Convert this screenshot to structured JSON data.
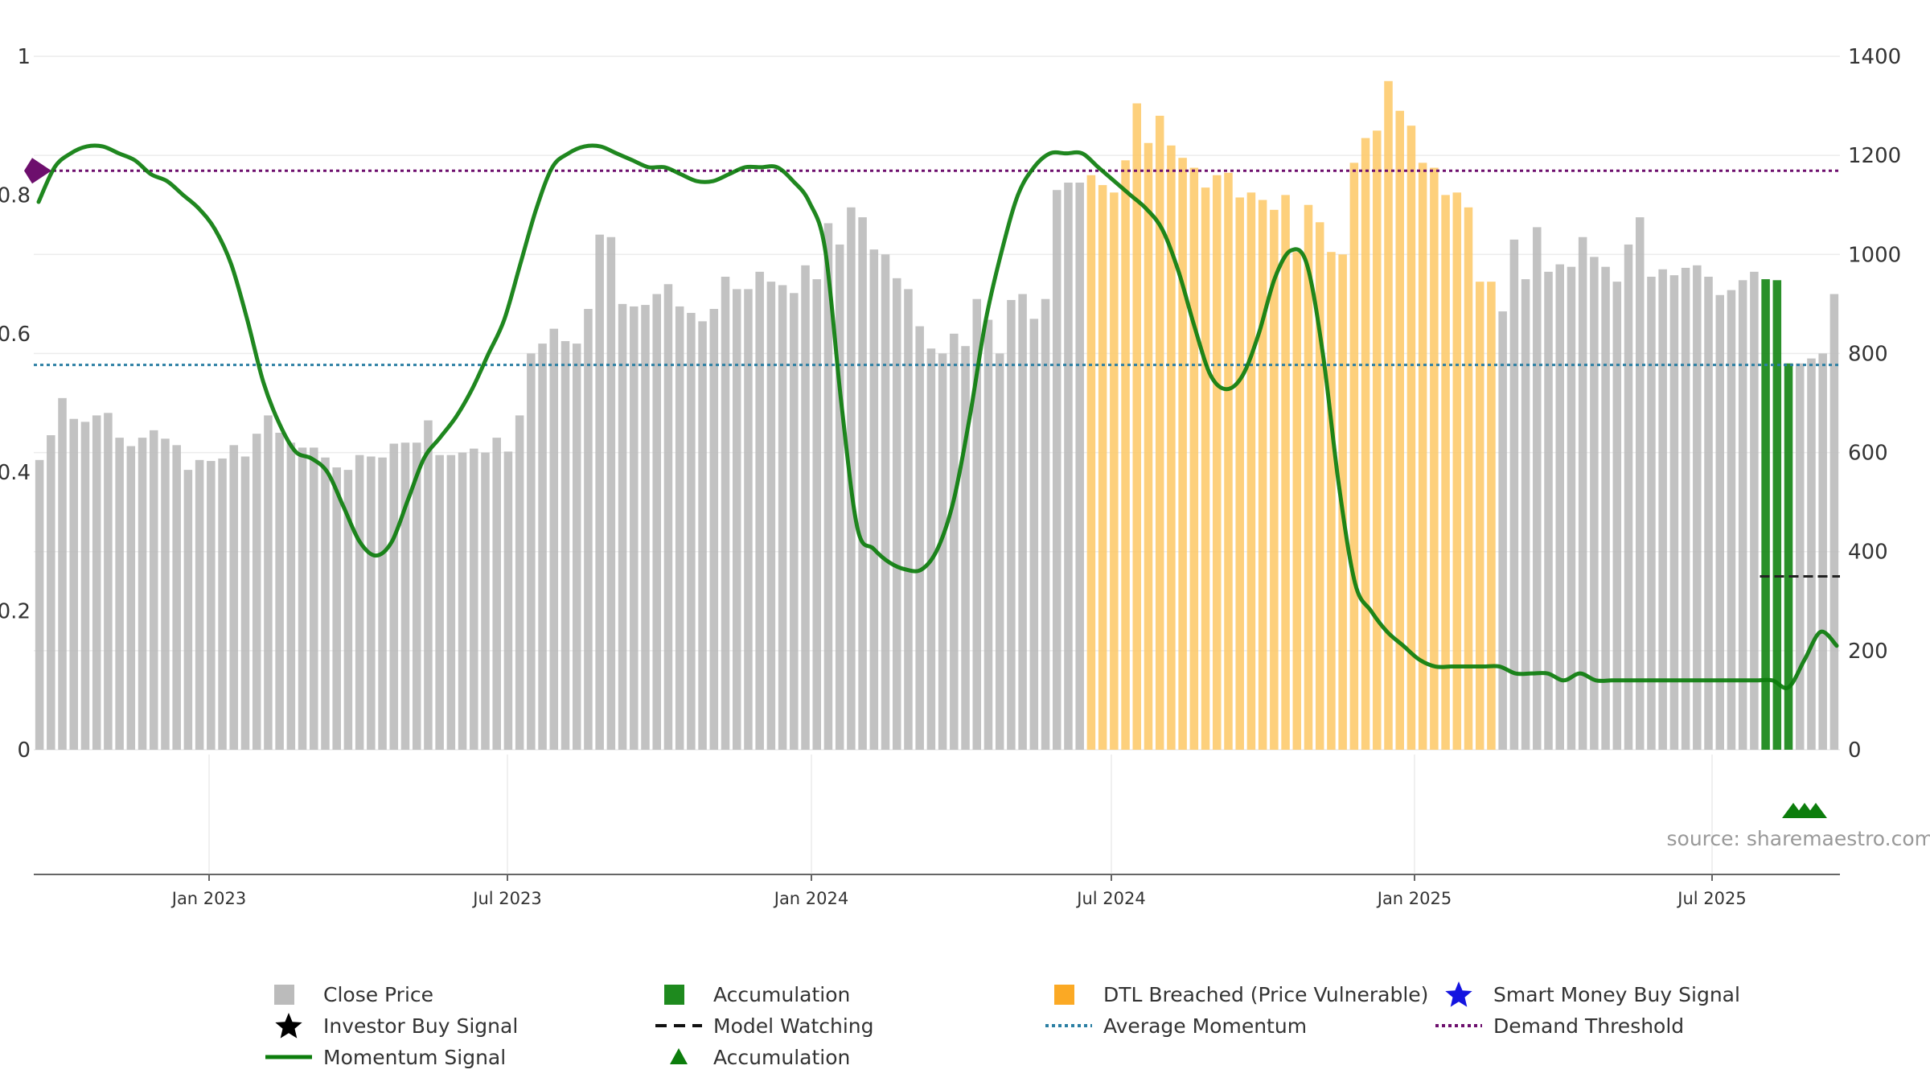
{
  "chart_data": {
    "type": "bar",
    "source_label": "source: sharemaestro.com",
    "x_tick_labels": [
      "Jan 2023",
      "Jul 2023",
      "Jan 2024",
      "Jul 2024",
      "Jan 2025",
      "Jul 2025"
    ],
    "left_axis": {
      "ticks": [
        "0",
        "0.2",
        "0.4",
        "0.6",
        "0.8",
        "1"
      ],
      "range": [
        0,
        1
      ]
    },
    "right_axis": {
      "ticks": [
        "0",
        "200",
        "400",
        "600",
        "800",
        "1000",
        "1200",
        "1400"
      ],
      "range": [
        0,
        1400
      ]
    },
    "series": [
      {
        "name": "Close Price",
        "color": "#bbbbbb",
        "dtl_color": "#fdcb6e",
        "accum_color": "#1e8a1e",
        "values": [
          585,
          635,
          710,
          668,
          662,
          675,
          680,
          630,
          613,
          630,
          645,
          628,
          615,
          565,
          585,
          583,
          588,
          615,
          592,
          638,
          675,
          640,
          620,
          610,
          610,
          590,
          570,
          565,
          595,
          592,
          590,
          618,
          620,
          620,
          665,
          595,
          595,
          600,
          608,
          600,
          630,
          602,
          675,
          800,
          820,
          850,
          825,
          820,
          890,
          1040,
          1035,
          900,
          895,
          898,
          920,
          940,
          895,
          882,
          865,
          890,
          955,
          930,
          930,
          965,
          945,
          938,
          922,
          978,
          950,
          1063,
          1020,
          1095,
          1075,
          1010,
          1000,
          952,
          930,
          855,
          810,
          800,
          840,
          815,
          910,
          868,
          800,
          908,
          920,
          870,
          910,
          1130,
          1145,
          1145,
          1160,
          1140,
          1125,
          1190,
          1305,
          1225,
          1280,
          1220,
          1195,
          1175,
          1135,
          1160,
          1165,
          1115,
          1125,
          1110,
          1090,
          1120,
          1005,
          1100,
          1065,
          1005,
          1000,
          1185,
          1235,
          1250,
          1350,
          1290,
          1260,
          1185,
          1175,
          1120,
          1125,
          1095,
          945,
          945,
          885,
          1030,
          950,
          1055,
          965,
          980,
          975,
          1035,
          995,
          975,
          945,
          1020,
          1075,
          955,
          970,
          958,
          973,
          978,
          955,
          918,
          928,
          948,
          965,
          950,
          948,
          780,
          780,
          790,
          800,
          920
        ],
        "dtl_indices": [
          92,
          93,
          94,
          95,
          96,
          97,
          98,
          99,
          100,
          101,
          102,
          103,
          104,
          105,
          106,
          107,
          108,
          109,
          110,
          111,
          112,
          113,
          114,
          115,
          116,
          117,
          118,
          119,
          120,
          121,
          122,
          123,
          124,
          125,
          126,
          127
        ],
        "accum_indices": [
          151,
          152,
          153
        ]
      },
      {
        "name": "Momentum Signal",
        "color": "#0c7d0c",
        "values": [
          0.79,
          0.84,
          0.86,
          0.87,
          0.87,
          0.86,
          0.85,
          0.83,
          0.82,
          0.8,
          0.78,
          0.75,
          0.7,
          0.62,
          0.53,
          0.47,
          0.43,
          0.42,
          0.4,
          0.35,
          0.3,
          0.28,
          0.3,
          0.36,
          0.42,
          0.45,
          0.48,
          0.52,
          0.57,
          0.62,
          0.7,
          0.78,
          0.84,
          0.86,
          0.87,
          0.87,
          0.86,
          0.85,
          0.84,
          0.84,
          0.83,
          0.82,
          0.82,
          0.83,
          0.84,
          0.84,
          0.84,
          0.82,
          0.79,
          0.72,
          0.5,
          0.32,
          0.29,
          0.27,
          0.26,
          0.26,
          0.29,
          0.36,
          0.48,
          0.62,
          0.72,
          0.8,
          0.84,
          0.86,
          0.86,
          0.86,
          0.84,
          0.82,
          0.8,
          0.78,
          0.75,
          0.69,
          0.61,
          0.54,
          0.52,
          0.54,
          0.6,
          0.68,
          0.72,
          0.7,
          0.57,
          0.38,
          0.24,
          0.2,
          0.17,
          0.15,
          0.13,
          0.12,
          0.12,
          0.12,
          0.12,
          0.12,
          0.11,
          0.11,
          0.11,
          0.1,
          0.11,
          0.1,
          0.1,
          0.1,
          0.1,
          0.1,
          0.1,
          0.1,
          0.1,
          0.1,
          0.1,
          0.1,
          0.1,
          0.09,
          0.13,
          0.17,
          0.15
        ]
      },
      {
        "name": "Average Momentum",
        "value": 0.555,
        "color": "#2b7fa3"
      },
      {
        "name": "Demand Threshold",
        "value": 0.835,
        "color": "#6d0f6d"
      },
      {
        "name": "Model Watching",
        "value": 0.25,
        "color": "#222222"
      },
      {
        "name": "Accumulation",
        "marker": "triangle",
        "count": 3,
        "color": "#0c7d0c"
      }
    ],
    "legend": [
      {
        "label": "Close Price",
        "symbol": "square-gray"
      },
      {
        "label": "Accumulation",
        "symbol": "square-green"
      },
      {
        "label": "DTL Breached (Price Vulnerable)",
        "symbol": "square-orange"
      },
      {
        "label": "Smart Money Buy Signal",
        "symbol": "star-blue"
      },
      {
        "label": "Investor Buy Signal",
        "symbol": "star-black"
      },
      {
        "label": "Model Watching",
        "symbol": "dash-black"
      },
      {
        "label": "Average Momentum",
        "symbol": "dot-teal"
      },
      {
        "label": "Demand Threshold",
        "symbol": "dot-purple"
      },
      {
        "label": "Momentum Signal",
        "symbol": "line-green"
      },
      {
        "label": "Accumulation",
        "symbol": "triangle-green"
      }
    ]
  }
}
